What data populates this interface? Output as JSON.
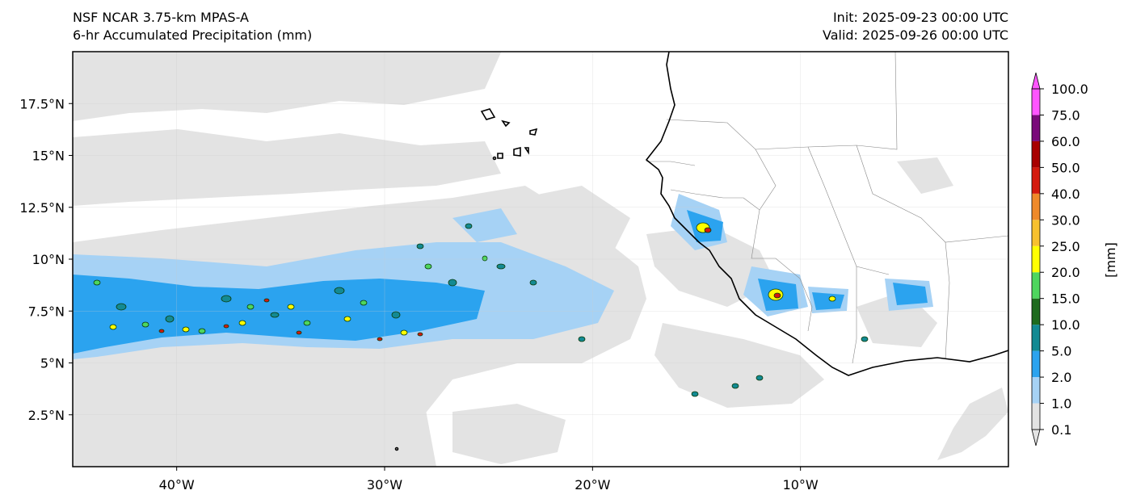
{
  "title": {
    "left_line1": "NSF NCAR 3.75-km MPAS-A",
    "left_line2": "6-hr Accumulated Precipitation (mm)",
    "right_line1": "Init: 2025-09-23 00:00 UTC",
    "right_line2": "Valid: 2025-09-26 00:00 UTC"
  },
  "map": {
    "lon_range": [
      -45,
      0
    ],
    "lat_range": [
      0,
      20
    ],
    "lon_ticks": [
      {
        "value": -40,
        "label": "40°W"
      },
      {
        "value": -30,
        "label": "30°W"
      },
      {
        "value": -20,
        "label": "20°W"
      },
      {
        "value": -10,
        "label": "10°W"
      }
    ],
    "lat_ticks": [
      {
        "value": 2.5,
        "label": "2.5°N"
      },
      {
        "value": 5,
        "label": "5°N"
      },
      {
        "value": 7.5,
        "label": "7.5°N"
      },
      {
        "value": 10,
        "label": "10°N"
      },
      {
        "value": 12.5,
        "label": "12.5°N"
      },
      {
        "value": 15,
        "label": "15°N"
      },
      {
        "value": 17.5,
        "label": "17.5°N"
      }
    ],
    "grid": true
  },
  "colorbar": {
    "label": "[mm]",
    "levels": [
      "0.1",
      "1.0",
      "2.0",
      "5.0",
      "10.0",
      "15.0",
      "20.0",
      "25.0",
      "30.0",
      "40.0",
      "50.0",
      "60.0",
      "75.0",
      "100.0"
    ],
    "colors": [
      "#e3e3e3",
      "#a6d2f5",
      "#2ba3ef",
      "#138a93",
      "#1e6b1e",
      "#4ed65e",
      "#ffff00",
      "#f7c12e",
      "#ef8a2a",
      "#d41a0e",
      "#a80000",
      "#7a0a7a",
      "#ff55ff"
    ],
    "extend": "both"
  }
}
